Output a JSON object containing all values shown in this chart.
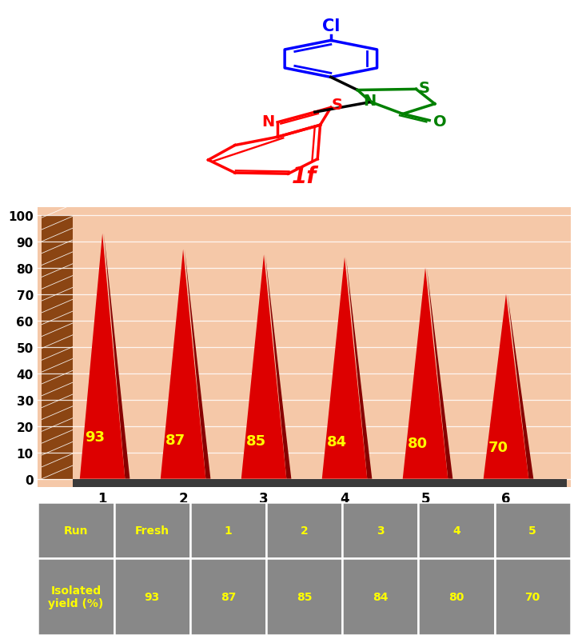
{
  "values": [
    93,
    87,
    85,
    84,
    80,
    70
  ],
  "x_labels": [
    "1",
    "2",
    "3",
    "4",
    "5",
    "6"
  ],
  "bar_color": "#DD0000",
  "bar_dark_color": "#880000",
  "label_color": "#FFFF00",
  "bg_color": "#F5C8A8",
  "floor_color": "#444444",
  "brown_color": "#8B4513",
  "ylim": [
    0,
    100
  ],
  "yticks": [
    0,
    10,
    20,
    30,
    40,
    50,
    60,
    70,
    80,
    90,
    100
  ],
  "table_bg": "#888888",
  "table_text_color": "#FFFF00",
  "table_border_color": "#FFFFFF",
  "run_row": [
    "Run",
    "Fresh",
    "1",
    "2",
    "3",
    "4",
    "5"
  ],
  "yield_row": [
    "Isolated\nyield (%)",
    "93",
    "87",
    "85",
    "84",
    "80",
    "70"
  ],
  "value_labels": [
    "93",
    "87",
    "85",
    "84",
    "80",
    "70"
  ],
  "label_fontsize": 13,
  "tick_fontsize": 11
}
